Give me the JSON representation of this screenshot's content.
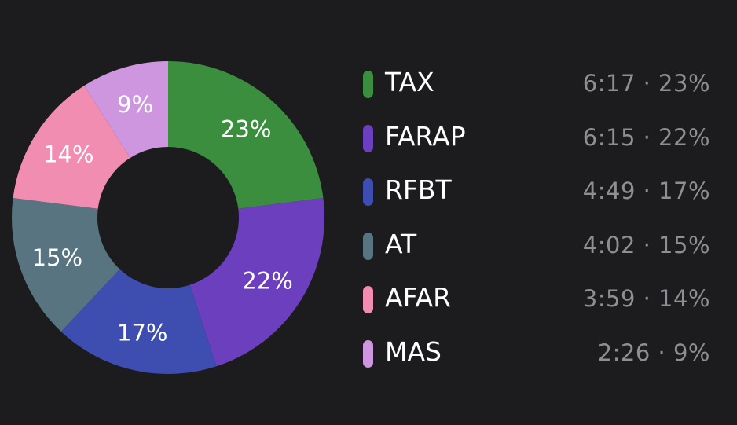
{
  "chart_data": {
    "type": "pie",
    "variant": "donut",
    "categories": [
      "TAX",
      "FARAP",
      "RFBT",
      "AT",
      "AFAR",
      "MAS"
    ],
    "values": [
      23,
      22,
      17,
      15,
      14,
      9
    ],
    "data_labels": [
      "23%",
      "22%",
      "17%",
      "15%",
      "14%",
      "9%"
    ],
    "durations": [
      "6:17",
      "6:15",
      "4:49",
      "4:02",
      "3:59",
      "2:26"
    ],
    "legend_values": [
      "6:17 · 23%",
      "6:15 · 22%",
      "4:49 · 17%",
      "4:02 · 15%",
      "3:59 · 14%",
      "2:26 · 9%"
    ],
    "colors": [
      "#3a8e3e",
      "#6b3fbe",
      "#3d4eb0",
      "#587480",
      "#f08db0",
      "#cd96df"
    ],
    "legend_placement": "right",
    "grid": false
  },
  "theme": {
    "background": "#1c1c1e",
    "label_color": "#ffffff",
    "value_color": "#8e8e93"
  }
}
